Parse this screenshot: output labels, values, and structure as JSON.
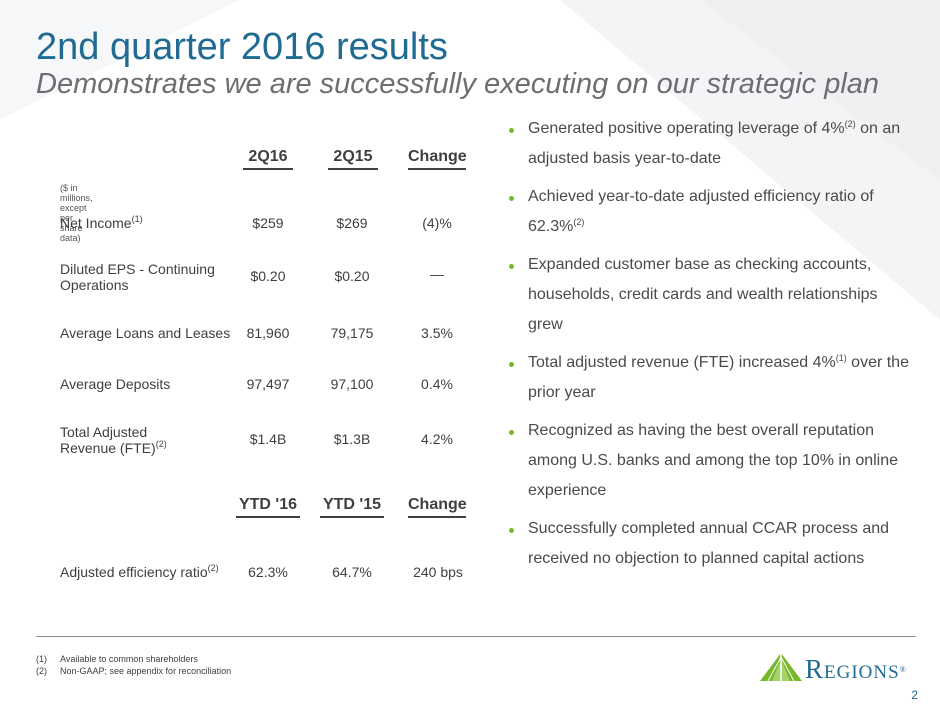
{
  "header": {
    "title": "2nd quarter 2016 results",
    "subtitle": "Demonstrates we are successfully executing on our strategic plan"
  },
  "table": {
    "headers": [
      "2Q16",
      "2Q15",
      "Change"
    ],
    "note": "($ in millions, except per share data)",
    "rows": [
      {
        "label": "Net Income",
        "sup": "(1)",
        "c1": "$259",
        "c2": "$269",
        "c3": "(4)%"
      },
      {
        "label": "Diluted EPS - Continuing Operations",
        "sup": "",
        "c1": "$0.20",
        "c2": "$0.20",
        "c3": "—"
      },
      {
        "label": "Average Loans and Leases",
        "sup": "",
        "c1": "81,960",
        "c2": "79,175",
        "c3": "3.5%"
      },
      {
        "label": "Average Deposits",
        "sup": "",
        "c1": "97,497",
        "c2": "97,100",
        "c3": "0.4%"
      },
      {
        "label": "Total Adjusted Revenue (FTE)",
        "sup": "(2)",
        "c1": "$1.4B",
        "c2": "$1.3B",
        "c3": "4.2%"
      }
    ],
    "ytd_headers": [
      "YTD '16",
      "YTD '15",
      "Change"
    ],
    "ytd_rows": [
      {
        "label": "Adjusted efficiency ratio",
        "sup": "(2)",
        "c1": "62.3%",
        "c2": "64.7%",
        "c3": "240 bps"
      }
    ]
  },
  "bullets": [
    {
      "a": "Generated positive operating leverage of 4%",
      "sup": "(2)",
      "b": " on an adjusted basis year-to-date"
    },
    {
      "a": "Achieved year-to-date adjusted efficiency ratio of 62.3%",
      "sup": "(2)",
      "b": ""
    },
    {
      "a": "Expanded customer base as checking accounts, households, credit cards and wealth relationships grew",
      "sup": "",
      "b": ""
    },
    {
      "a": "Total adjusted revenue (FTE) increased 4%",
      "sup": "(1)",
      "b": " over the prior year"
    },
    {
      "a": "Recognized as having the best overall reputation among U.S. banks and among the top 10% in online experience",
      "sup": "",
      "b": ""
    },
    {
      "a": "Successfully completed annual CCAR process and received no objection to planned capital actions",
      "sup": "",
      "b": ""
    }
  ],
  "footnotes": [
    {
      "key": "(1)",
      "text": "Available to common shareholders"
    },
    {
      "key": "(2)",
      "text": "Non-GAAP; see appendix for reconciliation"
    }
  ],
  "logo": {
    "text": "Regions",
    "mark": "®"
  },
  "page_number": "2",
  "colors": {
    "title": "#1f6b94",
    "bullet": "#76b82a",
    "logo_green": "#76b82a",
    "logo_blue": "#1f6b94"
  }
}
